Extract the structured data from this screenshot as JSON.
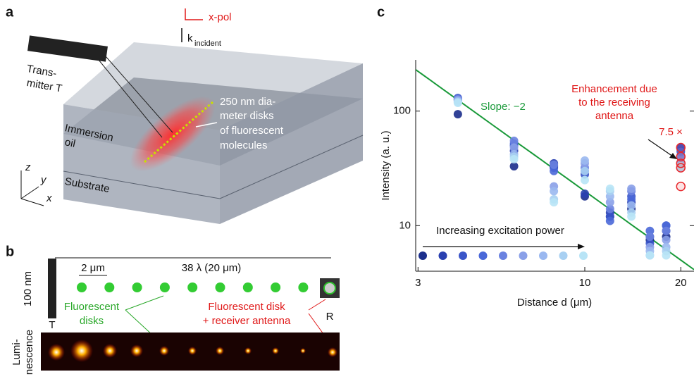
{
  "panel_a": {
    "label": "a",
    "polarization": "x-pol",
    "wavevector": "k",
    "wavevector_subscript": "incident",
    "transmitter": [
      "Trans-",
      "mitter T"
    ],
    "disks": [
      "250 nm dia-",
      "meter disks",
      "of fluorescent",
      "molecules"
    ],
    "oil": [
      "Immersion",
      "oil"
    ],
    "substrate": "Substrate",
    "axes": [
      "z",
      "y",
      "x"
    ]
  },
  "panel_b": {
    "label": "b",
    "span": "38 λ (20 μm)",
    "pitch": "2 μm",
    "gap": "100 nm",
    "transmitter": "T",
    "receiver": "R",
    "disks": [
      "Fluorescent",
      "disks"
    ],
    "receiver_disk": [
      "Fluorescent disk",
      "+ receiver antenna"
    ],
    "luminescence": [
      "Lumi-",
      "nescence"
    ]
  },
  "chart_data": {
    "type": "scatter",
    "panel_label": "c",
    "xlabel": "Distance d (μm)",
    "ylabel": "Intensity (a. u.)",
    "xlog": true,
    "ylog": true,
    "xlim": [
      2.95,
      22
    ],
    "ylim": [
      4,
      280
    ],
    "xticks": [
      3,
      10,
      20
    ],
    "yticks": [
      10,
      100
    ],
    "series": [
      {
        "color": "#1b2e8c",
        "x": [
          4,
          6,
          8,
          10,
          12,
          14,
          16,
          18,
          20
        ],
        "values": [
          94,
          33,
          33,
          18,
          12,
          14,
          7.5,
          8,
          45
        ]
      },
      {
        "color": "#2a40b0",
        "x": [
          4,
          6,
          8,
          10,
          12,
          14,
          16,
          18,
          20
        ],
        "values": [
          125,
          45,
          35,
          19,
          13,
          16,
          8,
          9,
          48
        ]
      },
      {
        "color": "#3a55c8",
        "x": [
          4,
          6,
          8,
          10,
          12,
          14,
          16,
          18,
          20
        ],
        "values": [
          130,
          50,
          32,
          28,
          12,
          18,
          7,
          10,
          47
        ]
      },
      {
        "color": "#4a68d8",
        "x": [
          4,
          6,
          8,
          10,
          12,
          14,
          16,
          18,
          20
        ],
        "values": [
          128,
          52,
          30,
          30,
          11,
          17,
          9,
          10,
          44
        ]
      },
      {
        "color": "#6a82e0",
        "x": [
          4,
          6,
          8,
          10,
          12,
          14,
          16,
          18,
          20
        ],
        "values": [
          127,
          55,
          34,
          32,
          14,
          20,
          8,
          9,
          40
        ]
      },
      {
        "color": "#8aa0e8",
        "x": [
          4,
          6,
          8,
          10,
          12,
          14,
          16,
          18,
          20
        ],
        "values": [
          125,
          48,
          22,
          35,
          16,
          21,
          6.5,
          7.5,
          36
        ]
      },
      {
        "color": "#9ab8f0",
        "x": [
          4,
          6,
          8,
          10,
          12,
          14,
          16,
          18,
          20
        ],
        "values": [
          122,
          42,
          20,
          37,
          18,
          15,
          6,
          6.5,
          34
        ]
      },
      {
        "color": "#a8d0f2",
        "x": [
          4,
          6,
          8,
          10,
          12,
          14,
          16,
          18,
          20
        ],
        "values": [
          120,
          40,
          17,
          30,
          20,
          13,
          5.5,
          6,
          32
        ]
      },
      {
        "color": "#b8e4f6",
        "x": [
          4,
          6,
          8,
          10,
          12,
          14,
          16,
          18,
          20
        ],
        "values": [
          118,
          38,
          16,
          25,
          21,
          12,
          5.5,
          5.5,
          33
        ]
      },
      {
        "color": "#e8282c",
        "marker": "open",
        "x": [
          20,
          20,
          20,
          20,
          20
        ],
        "values": [
          48,
          40,
          35,
          32,
          22
        ]
      }
    ],
    "fit": {
      "label": "Slope: −2",
      "slope": -2,
      "coefficient": 2000,
      "color": "#1a9a3a"
    },
    "enhancement": [
      "Enhancement due",
      "to the receiving",
      "antenna"
    ],
    "factor": "7.5 ×",
    "power": "Increasing excitation power"
  }
}
